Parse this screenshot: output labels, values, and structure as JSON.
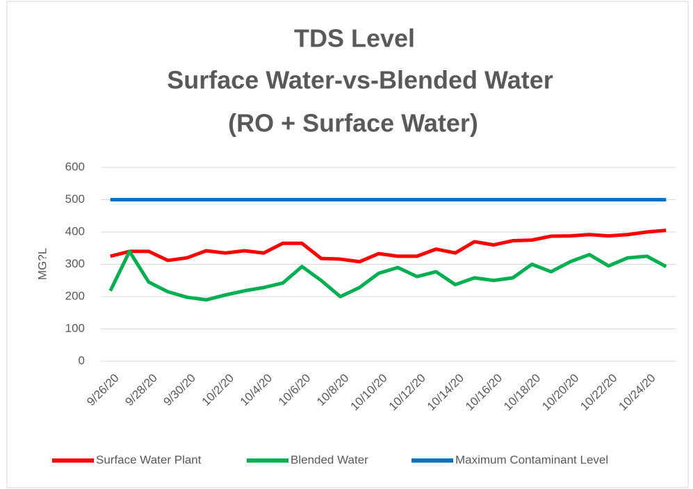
{
  "chart_data": {
    "type": "line",
    "title": [
      "TDS Level",
      "Surface Water-vs-Blended Water",
      "(RO + Surface Water)"
    ],
    "y_label": "MG?L",
    "categories": [
      "9/26/20",
      null,
      "9/28/20",
      null,
      "9/30/20",
      null,
      "10/2/20",
      null,
      "10/4/20",
      null,
      "10/6/20",
      null,
      "10/8/20",
      null,
      "10/10/20",
      null,
      "10/12/20",
      null,
      "10/14/20",
      null,
      "10/16/20",
      null,
      "10/18/20",
      null,
      "10/20/20",
      null,
      "10/22/20",
      null,
      "10/24/20",
      null
    ],
    "series": [
      {
        "name": "Surface Water Plant",
        "color": "#ff0000",
        "values": [
          325,
          340,
          340,
          312,
          320,
          342,
          335,
          342,
          335,
          365,
          365,
          318,
          316,
          308,
          333,
          325,
          325,
          347,
          335,
          370,
          360,
          373,
          375,
          387,
          388,
          392,
          388,
          392,
          400,
          405
        ]
      },
      {
        "name": "Blended Water",
        "color": "#00b050",
        "values": [
          218,
          340,
          245,
          215,
          198,
          190,
          205,
          218,
          228,
          242,
          293,
          250,
          200,
          228,
          272,
          290,
          262,
          277,
          237,
          258,
          250,
          258,
          300,
          277,
          308,
          330,
          295,
          320,
          325,
          293
        ]
      },
      {
        "name": "Maximum Contaminant Level",
        "color": "#0070c0",
        "values": [
          500,
          500,
          500,
          500,
          500,
          500,
          500,
          500,
          500,
          500,
          500,
          500,
          500,
          500,
          500,
          500,
          500,
          500,
          500,
          500,
          500,
          500,
          500,
          500,
          500,
          500,
          500,
          500,
          500,
          500
        ]
      }
    ],
    "ylim": [
      0,
      600
    ],
    "yticks": [
      0,
      100,
      200,
      300,
      400,
      500,
      600
    ],
    "grid": true,
    "legend": "bottom"
  }
}
